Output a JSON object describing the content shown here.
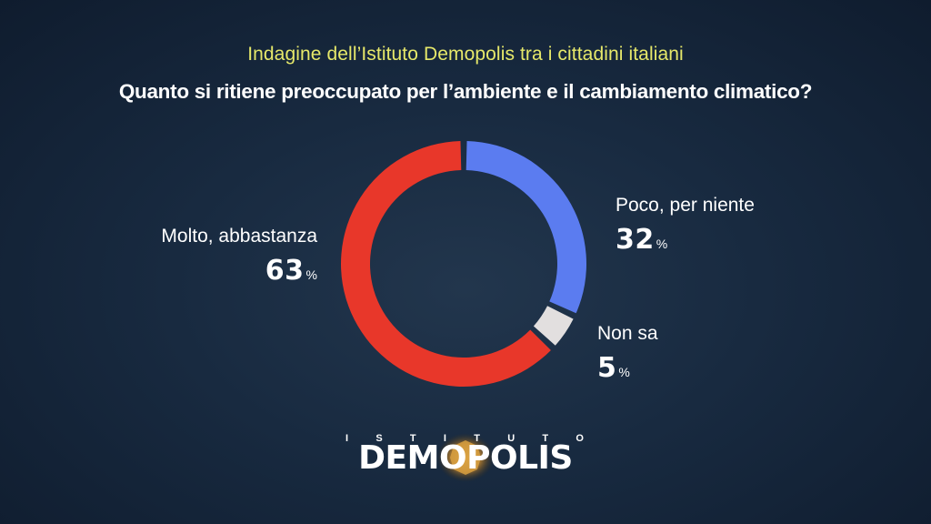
{
  "header": {
    "subtitle": "Indagine dell’Istituto Demopolis tra i cittadini italiani",
    "title": "Quanto si ritiene preoccupato per l’ambiente e il cambiamento climatico?"
  },
  "chart_data": {
    "type": "pie",
    "donut": true,
    "title": "Quanto si ritiene preoccupato per l’ambiente e il cambiamento climatico?",
    "subtitle": "Indagine dell’Istituto Demopolis tra i cittadini italiani",
    "slices": [
      {
        "label": "Poco, per niente",
        "value": 32,
        "color": "#5b7cf0"
      },
      {
        "label": "Non sa",
        "value": 5,
        "color": "#e2dfdf"
      },
      {
        "label": "Molto, abbastanza",
        "value": 63,
        "color": "#e8372a"
      }
    ],
    "unit": "%"
  },
  "labels": {
    "poco": {
      "name": "Poco, per niente",
      "value": "32"
    },
    "nonsa": {
      "name": "Non sa",
      "value": "5"
    },
    "molto": {
      "name": "Molto, abbastanza",
      "value": "63"
    },
    "unit": "%"
  },
  "logo": {
    "top": "ISTITUTO",
    "main": "DEMOPOLIS"
  }
}
